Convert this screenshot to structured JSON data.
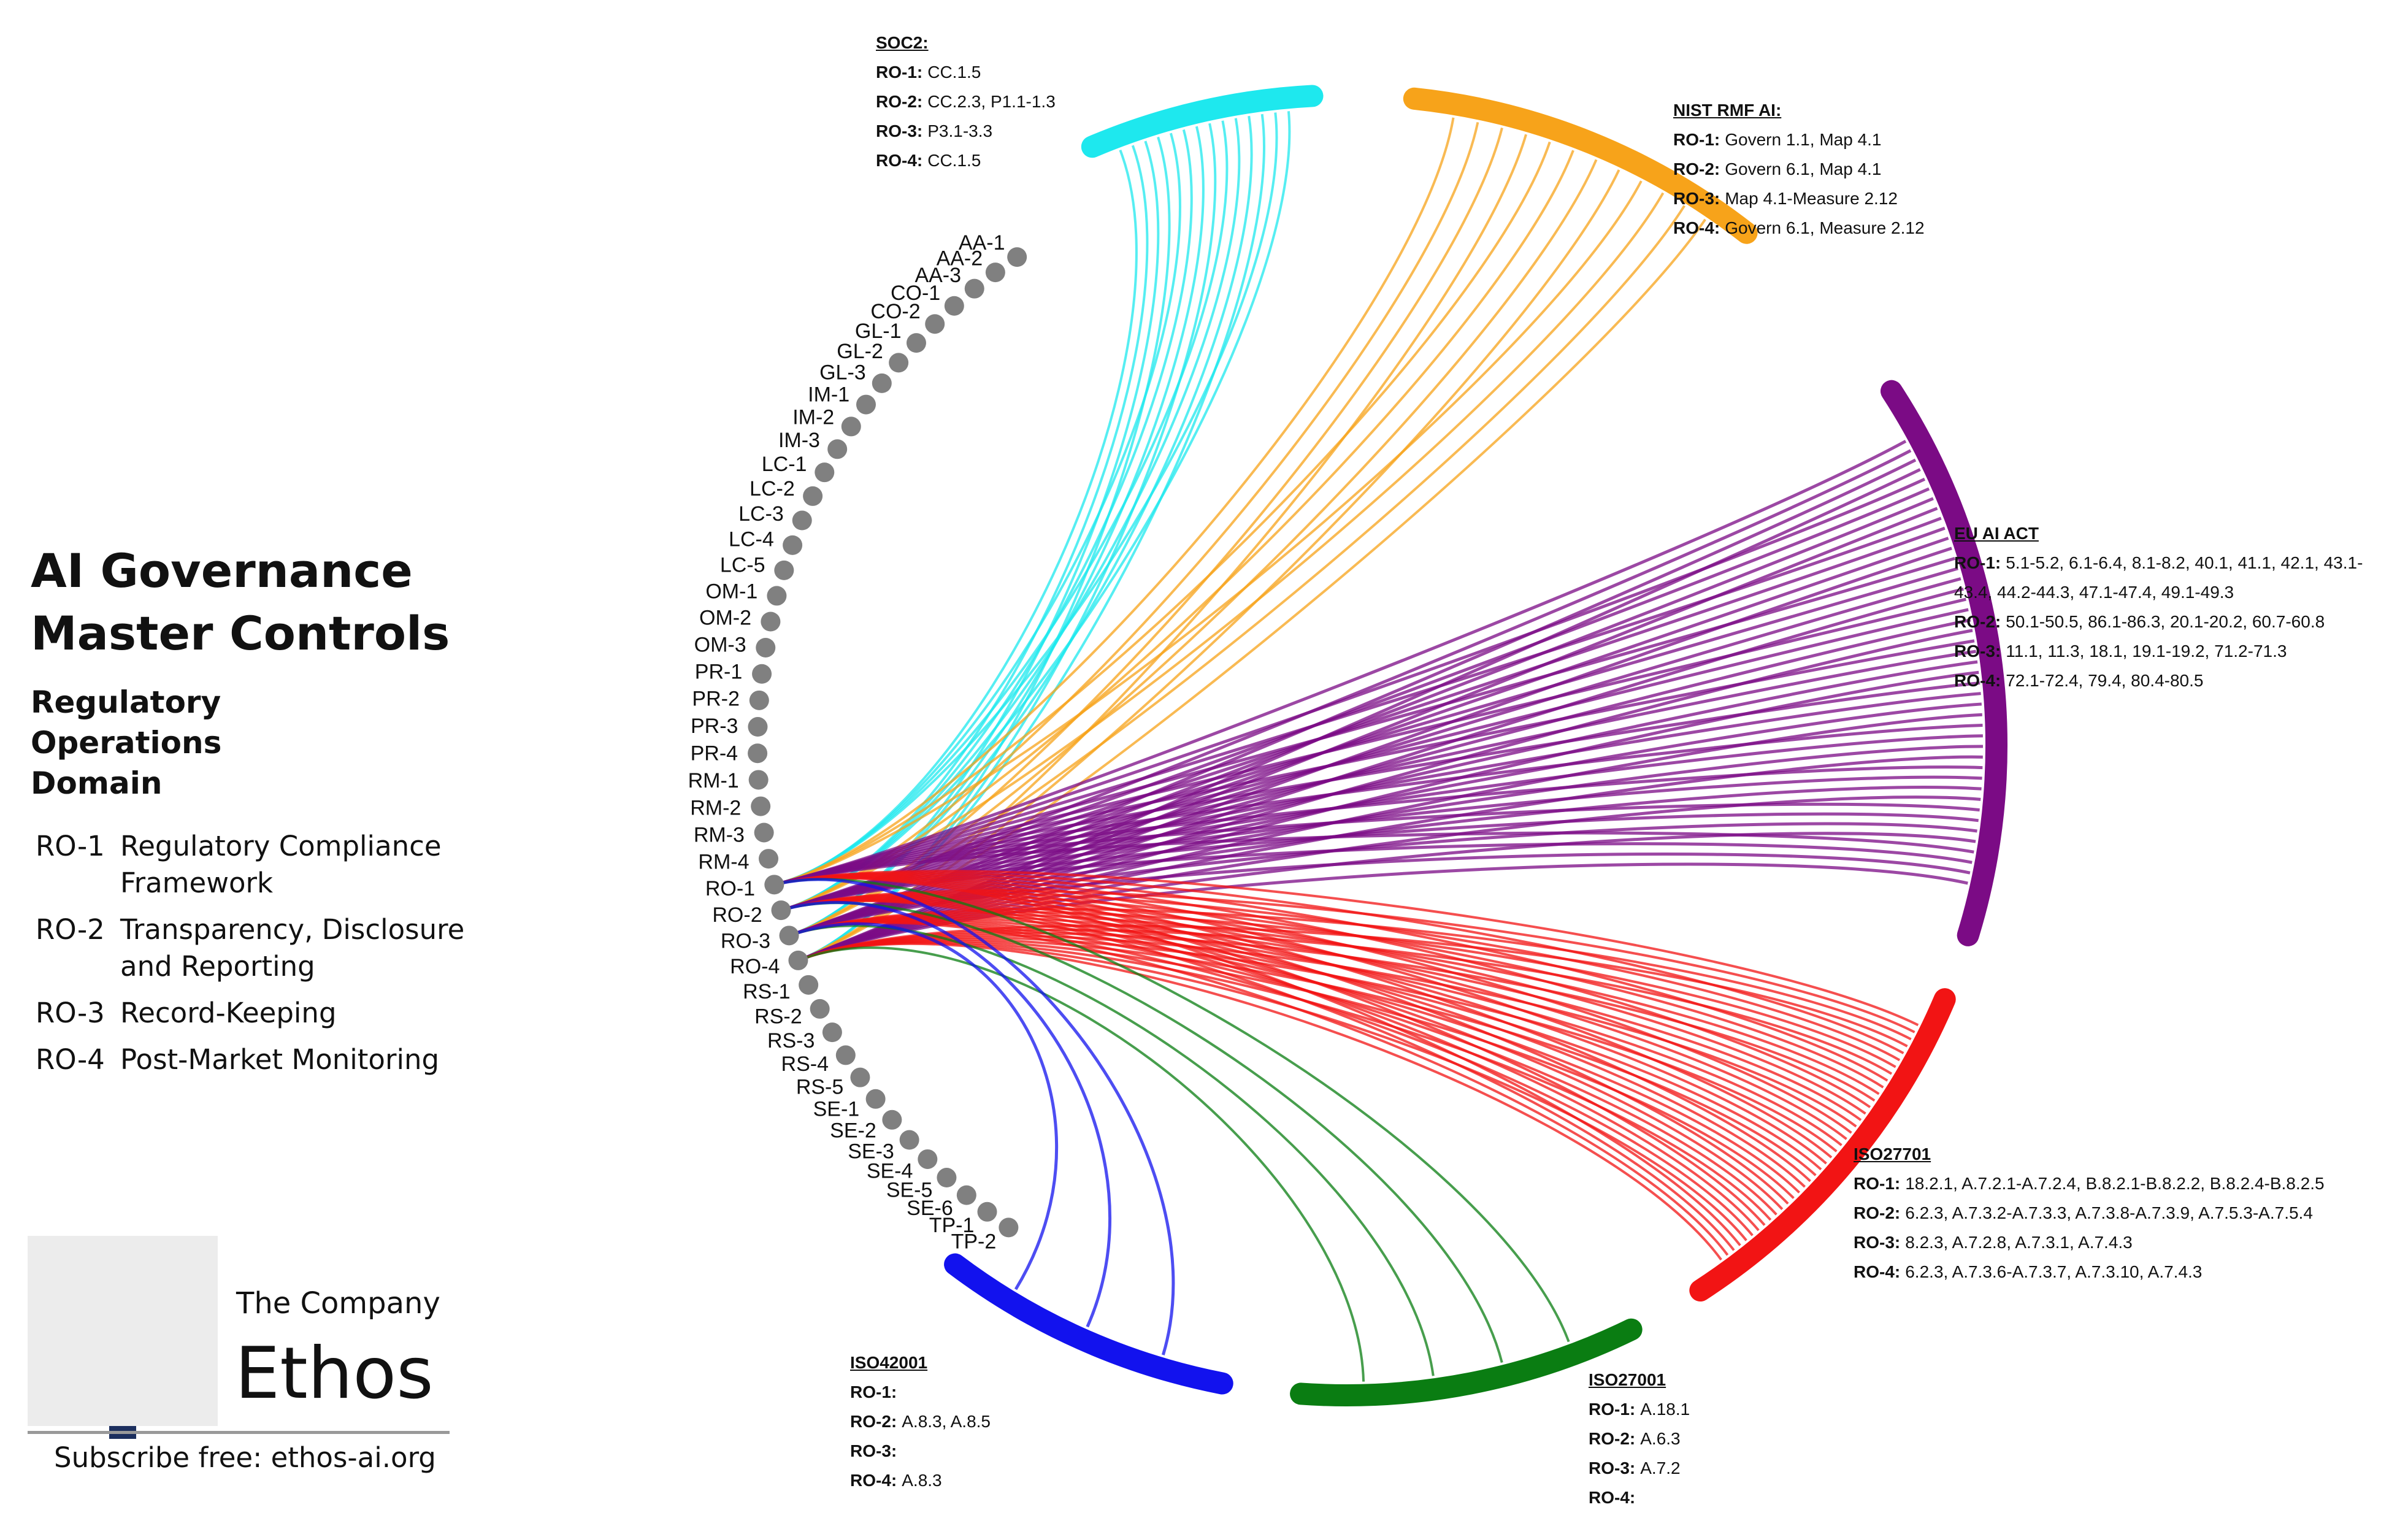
{
  "title": {
    "line1": "AI Governance",
    "line2": "Master Controls"
  },
  "domain": {
    "line1": "Regulatory",
    "line2": "Operations",
    "line3": "Domain"
  },
  "legend": [
    {
      "code": "RO-1",
      "desc": "Regulatory Compliance Framework"
    },
    {
      "code": "RO-2",
      "desc": "Transparency, Disclosure and Reporting"
    },
    {
      "code": "RO-3",
      "desc": "Record-Keeping"
    },
    {
      "code": "RO-4",
      "desc": "Post-Market Monitoring"
    }
  ],
  "brand": {
    "company": "The Company",
    "name": "Ethos",
    "subscribe": "Subscribe free: ethos-ai.org",
    "copyright": "©"
  },
  "controls": [
    "AA-1",
    "AA-2",
    "AA-3",
    "CO-1",
    "CO-2",
    "GL-1",
    "GL-2",
    "GL-3",
    "IM-1",
    "IM-2",
    "IM-3",
    "LC-1",
    "LC-2",
    "LC-3",
    "LC-4",
    "LC-5",
    "OM-1",
    "OM-2",
    "OM-3",
    "PR-1",
    "PR-2",
    "PR-3",
    "PR-4",
    "RM-1",
    "RM-2",
    "RM-3",
    "RM-4",
    "RO-1",
    "RO-2",
    "RO-3",
    "RO-4",
    "RS-1",
    "RS-2",
    "RS-3",
    "RS-4",
    "RS-5",
    "SE-1",
    "SE-2",
    "SE-3",
    "SE-4",
    "SE-5",
    "SE-6",
    "TP-1",
    "TP-2"
  ],
  "frameworks": [
    {
      "id": "soc2",
      "title": "SOC2:",
      "color": "#1ee8ee",
      "rows": [
        {
          "key": "RO-1:",
          "value": "CC.1.5"
        },
        {
          "key": "RO-2:",
          "value": "CC.2.3, P1.1-1.3"
        },
        {
          "key": "RO-3:",
          "value": "P3.1-3.3"
        },
        {
          "key": "RO-4:",
          "value": "CC.1.5"
        }
      ]
    },
    {
      "id": "nist",
      "title": "NIST RMF AI:",
      "color": "#f7a31a",
      "rows": [
        {
          "key": "RO-1:",
          "value": "Govern 1.1, Map 4.1"
        },
        {
          "key": "RO-2:",
          "value": "Govern 6.1, Map 4.1"
        },
        {
          "key": "RO-3:",
          "value": "Map 4.1-Measure 2.12"
        },
        {
          "key": "RO-4:",
          "value": "Govern 6.1, Measure 2.12"
        }
      ]
    },
    {
      "id": "euai",
      "title": "EU AI ACT",
      "color": "#7b0b85",
      "rows": [
        {
          "key": "RO-1:",
          "value": "5.1-5.2, 6.1-6.4, 8.1-8.2, 40.1, 41.1, 42.1, 43.1-43.4, 44.2-44.3, 47.1-47.4, 49.1-49.3"
        },
        {
          "key": "RO-2:",
          "value": "50.1-50.5,  86.1-86.3, 20.1-20.2, 60.7-60.8"
        },
        {
          "key": "RO-3:",
          "value": "11.1, 11.3, 18.1, 19.1-19.2, 71.2-71.3"
        },
        {
          "key": "RO-4:",
          "value": "72.1-72.4, 79.4, 80.4-80.5"
        }
      ]
    },
    {
      "id": "iso27701",
      "title": "ISO27701",
      "color": "#f21414",
      "rows": [
        {
          "key": "RO-1:",
          "value": "18.2.1, A.7.2.1-A.7.2.4, B.8.2.1-B.8.2.2,  B.8.2.4-B.8.2.5"
        },
        {
          "key": "RO-2:",
          "value": "6.2.3,  A.7.3.2-A.7.3.3,  A.7.3.8-A.7.3.9,  A.7.5.3-A.7.5.4"
        },
        {
          "key": "RO-3:",
          "value": "8.2.3,  A.7.2.8,  A.7.3.1,  A.7.4.3"
        },
        {
          "key": "RO-4:",
          "value": "6.2.3,  A.7.3.6-A.7.3.7,  A.7.3.10,  A.7.4.3"
        }
      ]
    },
    {
      "id": "iso27001",
      "title": "ISO27001",
      "color": "#0a7d12",
      "rows": [
        {
          "key": "RO-1:",
          "value": "A.18.1"
        },
        {
          "key": "RO-2:",
          "value": "A.6.3"
        },
        {
          "key": "RO-3:",
          "value": "A.7.2"
        },
        {
          "key": "RO-4:",
          "value": ""
        }
      ]
    },
    {
      "id": "iso42001",
      "title": "ISO42001",
      "color": "#1212ee",
      "rows": [
        {
          "key": "RO-1:",
          "value": ""
        },
        {
          "key": "RO-2:",
          "value": "A.8.3,  A.8.5"
        },
        {
          "key": "RO-3:",
          "value": ""
        },
        {
          "key": "RO-4:",
          "value": "A.8.3"
        }
      ]
    }
  ],
  "node_color": "#808080"
}
